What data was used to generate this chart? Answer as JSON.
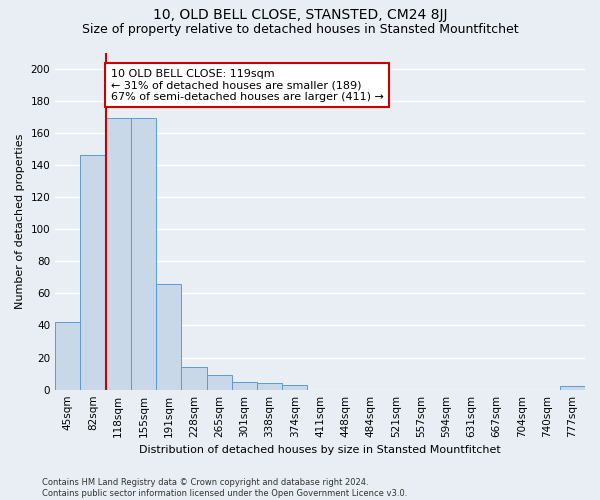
{
  "title_line1": "10, OLD BELL CLOSE, STANSTED, CM24 8JJ",
  "title_line2": "Size of property relative to detached houses in Stansted Mountfitchet",
  "xlabel": "Distribution of detached houses by size in Stansted Mountfitchet",
  "ylabel": "Number of detached properties",
  "footnote": "Contains HM Land Registry data © Crown copyright and database right 2024.\nContains public sector information licensed under the Open Government Licence v3.0.",
  "categories": [
    "45sqm",
    "82sqm",
    "118sqm",
    "155sqm",
    "191sqm",
    "228sqm",
    "265sqm",
    "301sqm",
    "338sqm",
    "374sqm",
    "411sqm",
    "448sqm",
    "484sqm",
    "521sqm",
    "557sqm",
    "594sqm",
    "631sqm",
    "667sqm",
    "704sqm",
    "740sqm",
    "777sqm"
  ],
  "values": [
    42,
    146,
    169,
    169,
    66,
    14,
    9,
    5,
    4,
    3,
    0,
    0,
    0,
    0,
    0,
    0,
    0,
    0,
    0,
    0,
    2
  ],
  "bar_color": "#c8d8e8",
  "bar_edge_color": "#5b9bd5",
  "background_color": "#e8eef4",
  "grid_color": "#ffffff",
  "annotation_line1": "10 OLD BELL CLOSE: 119sqm",
  "annotation_line2": "← 31% of detached houses are smaller (189)",
  "annotation_line3": "67% of semi-detached houses are larger (411) →",
  "annotation_box_color": "#ffffff",
  "annotation_box_edge_color": "#cc0000",
  "vline_color": "#cc0000",
  "ylim": [
    0,
    210
  ],
  "yticks": [
    0,
    20,
    40,
    60,
    80,
    100,
    120,
    140,
    160,
    180,
    200
  ],
  "title_fontsize": 10,
  "subtitle_fontsize": 9,
  "axis_label_fontsize": 8,
  "tick_fontsize": 7.5,
  "annotation_fontsize": 8
}
